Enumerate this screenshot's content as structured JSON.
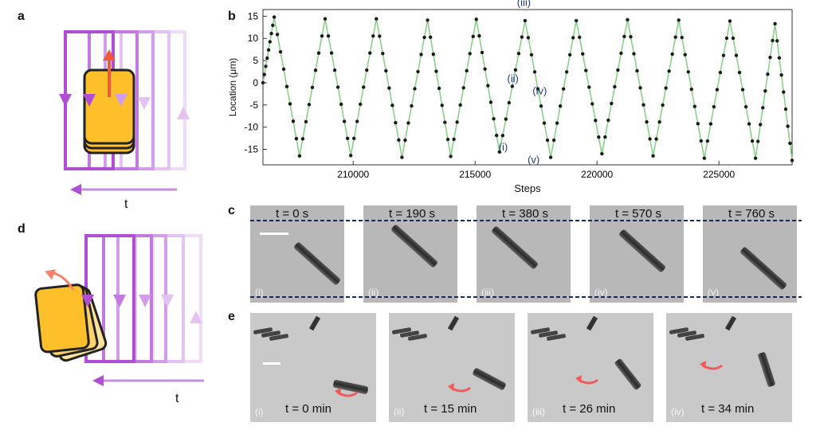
{
  "panels": {
    "a": "a",
    "b": "b",
    "c": "c",
    "d": "d",
    "e": "e"
  },
  "panel_a": {
    "t_label": "t"
  },
  "panel_d": {
    "t_label": "t"
  },
  "colors": {
    "purple": "#b04fd6",
    "yellow": "#fdc02a",
    "arrow_red": "#f05a3a",
    "line_green": "#8bd08a",
    "dashed": "#1c2a55",
    "roman_label": "#1f3a6e"
  },
  "chart_data": {
    "type": "line",
    "title": "",
    "xlabel": "Steps",
    "ylabel": "Location (μm)",
    "xlim": [
      206300,
      228000
    ],
    "ylim": [
      -18.5,
      16.5
    ],
    "xticks": [
      210000,
      215000,
      220000,
      225000
    ],
    "xtick_labels": [
      "210000",
      "215000",
      "220000",
      "225000"
    ],
    "yticks": [
      15,
      10,
      5,
      0,
      -5,
      -10,
      -15
    ],
    "ytick_labels": [
      "15",
      "10",
      "5",
      "0",
      "-5",
      "-10",
      "-15"
    ],
    "grid": false,
    "turning_points": [
      {
        "x": 206300,
        "y": 0
      },
      {
        "x": 206760,
        "y": 14.8
      },
      {
        "x": 207800,
        "y": -16.5
      },
      {
        "x": 208850,
        "y": 14.4
      },
      {
        "x": 209900,
        "y": -16.4
      },
      {
        "x": 210950,
        "y": 14.4
      },
      {
        "x": 212000,
        "y": -16.8
      },
      {
        "x": 213050,
        "y": 14.1
      },
      {
        "x": 214000,
        "y": -16.6
      },
      {
        "x": 215050,
        "y": 14.3
      },
      {
        "x": 216000,
        "y": -15.6
      },
      {
        "x": 217050,
        "y": 14.0
      },
      {
        "x": 218100,
        "y": -16.8
      },
      {
        "x": 219150,
        "y": 14.0
      },
      {
        "x": 220200,
        "y": -16.0
      },
      {
        "x": 221250,
        "y": 14.2
      },
      {
        "x": 222300,
        "y": -16.5
      },
      {
        "x": 223350,
        "y": 14.1
      },
      {
        "x": 224400,
        "y": -17.0
      },
      {
        "x": 225450,
        "y": 13.9
      },
      {
        "x": 226500,
        "y": -17.0
      },
      {
        "x": 227300,
        "y": 13.3
      },
      {
        "x": 228000,
        "y": -17.5
      }
    ],
    "points_per_segment": 8,
    "annotations": [
      {
        "text": "(iii)",
        "x": 217000,
        "y": 17.3
      },
      {
        "text": "(ii)",
        "x": 216550,
        "y": 0.2
      },
      {
        "text": "(iv)",
        "x": 217650,
        "y": -2.6
      },
      {
        "text": "(i)",
        "x": 216150,
        "y": -15.3
      },
      {
        "text": "(v)",
        "x": 217400,
        "y": -18.1
      }
    ]
  },
  "panel_c": {
    "frames": [
      {
        "time": "t = 0 s",
        "roman": "(i)"
      },
      {
        "time": "t = 190 s",
        "roman": "(ii)"
      },
      {
        "time": "t = 380 s",
        "roman": "(iii)"
      },
      {
        "time": "t = 570 s",
        "roman": "(iv)"
      },
      {
        "time": "t = 760 s",
        "roman": "(v)"
      }
    ]
  },
  "panel_e": {
    "frames": [
      {
        "time": "t = 0 min",
        "roman": "(i)"
      },
      {
        "time": "t = 15 min",
        "roman": "(ii)"
      },
      {
        "time": "t = 26 min",
        "roman": "(iii)"
      },
      {
        "time": "t = 34 min",
        "roman": "(iv)"
      }
    ]
  }
}
